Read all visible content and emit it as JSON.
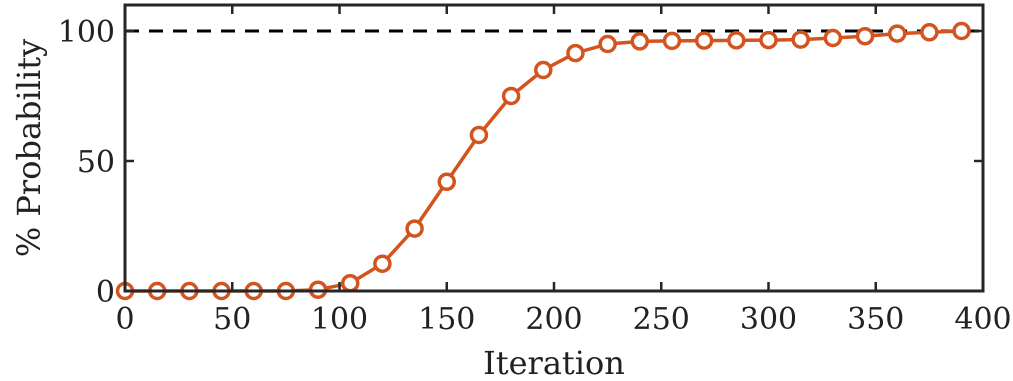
{
  "chart_data": {
    "type": "line",
    "title": "",
    "xlabel": "Iteration",
    "ylabel": "% Probability",
    "xlim": [
      0,
      400
    ],
    "ylim": [
      0,
      110
    ],
    "xticks": [
      0,
      50,
      100,
      150,
      200,
      250,
      300,
      350,
      400
    ],
    "yticks": [
      0,
      50,
      100
    ],
    "x_tick_labels": [
      "0",
      "50",
      "100",
      "150",
      "200",
      "250",
      "300",
      "350",
      "400"
    ],
    "y_tick_labels": [
      "0",
      "50",
      "100"
    ],
    "grid": false,
    "reference_line": {
      "y": 100,
      "style": "dashed",
      "color": "#000000"
    },
    "series": [
      {
        "color": "#D2541E",
        "marker": "open-circle",
        "x": [
          0,
          15,
          30,
          45,
          60,
          75,
          90,
          105,
          120,
          135,
          150,
          165,
          180,
          195,
          210,
          225,
          240,
          255,
          270,
          285,
          300,
          315,
          330,
          345,
          360,
          375,
          390
        ],
        "y": [
          0,
          0,
          0,
          0,
          0,
          0,
          0.5,
          3,
          10.5,
          24,
          42,
          60,
          75,
          85,
          91.5,
          95,
          96,
          96.2,
          96.3,
          96.4,
          96.5,
          96.7,
          97.3,
          98,
          99,
          99.5,
          100
        ]
      }
    ]
  }
}
